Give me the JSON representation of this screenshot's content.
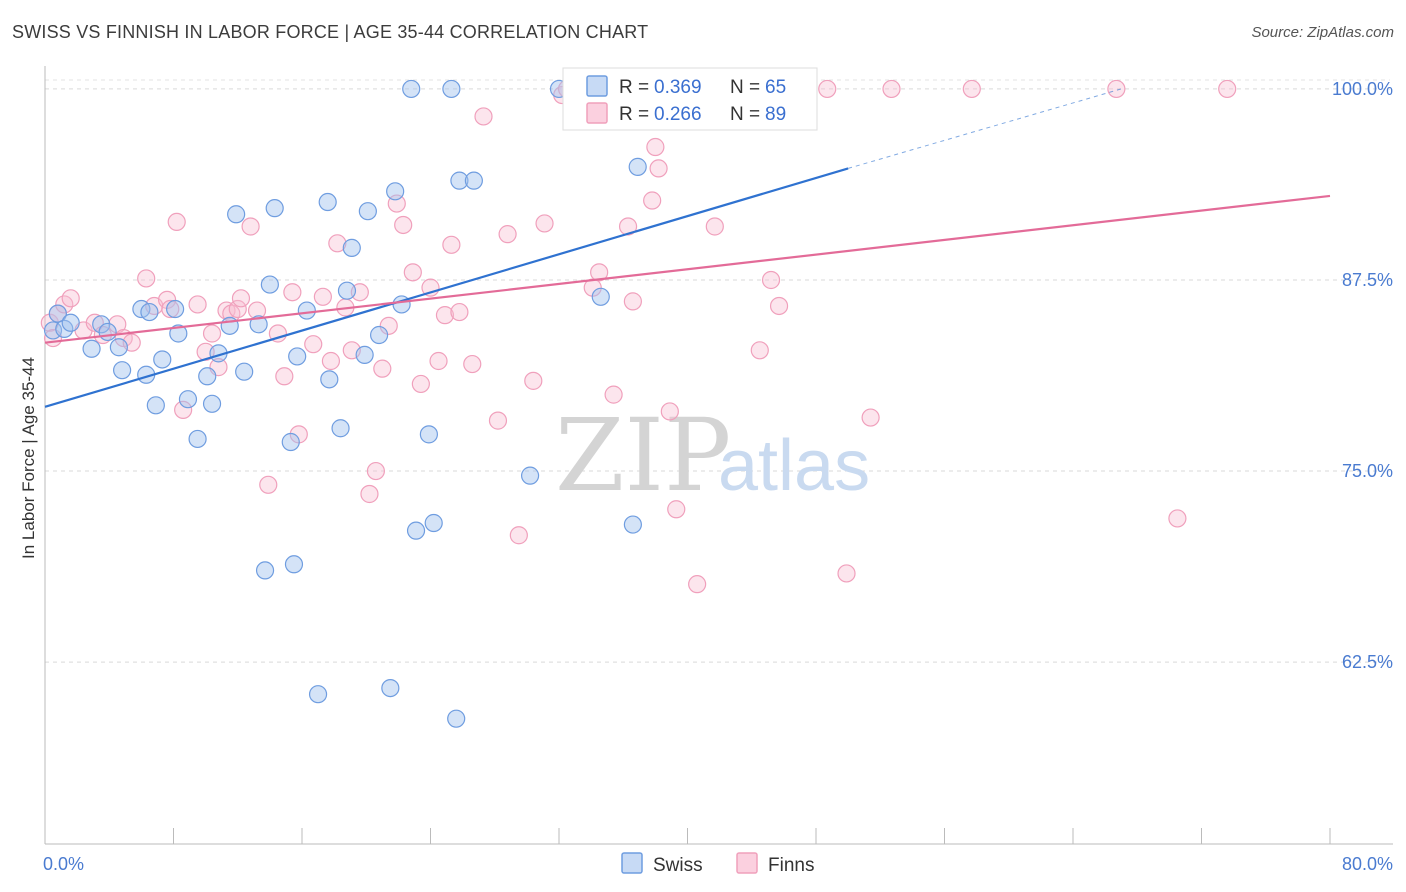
{
  "title": "SWISS VS FINNISH IN LABOR FORCE | AGE 35-44 CORRELATION CHART",
  "source": "Source: ZipAtlas.com",
  "watermark": {
    "zip": "ZIP",
    "atlas": "atlas"
  },
  "legend_top": [
    {
      "r_label": "R = ",
      "r_value": "0.369",
      "n_label": "N = ",
      "n_value": "65",
      "color": "#6f9de0"
    },
    {
      "r_label": "R = ",
      "r_value": "0.266",
      "n_label": "N = ",
      "n_value": "89",
      "color": "#f0a0bc"
    }
  ],
  "legend_bottom": [
    {
      "name": "Swiss",
      "color": "#6f9de0"
    },
    {
      "name": "Finns",
      "color": "#f0a0bc"
    }
  ],
  "chart_data": {
    "type": "scatter",
    "title": "SWISS VS FINNISH IN LABOR FORCE | AGE 35-44 CORRELATION CHART",
    "xlabel": "",
    "ylabel": "In Labor Force | Age 35-44",
    "xlim": [
      0,
      80
    ],
    "ylim": [
      50.6,
      101.5
    ],
    "x_tick_labels": [
      {
        "value": 0,
        "label": "0.0%"
      },
      {
        "value": 80,
        "label": "80.0%"
      }
    ],
    "y_tick_labels": [
      {
        "value": 100,
        "label": "100.0%"
      },
      {
        "value": 87.5,
        "label": "87.5%"
      },
      {
        "value": 75,
        "label": "75.0%"
      },
      {
        "value": 62.5,
        "label": "62.5%"
      }
    ],
    "grid": true,
    "series": [
      {
        "name": "Swiss",
        "color": "#6f9de0",
        "line_color": "#2f72d0",
        "trend": {
          "x": [
            0,
            50
          ],
          "y": [
            79.2,
            94.8
          ],
          "dashed_to": [
            67,
            100
          ]
        },
        "points": [
          [
            0.5,
            84.2
          ],
          [
            0.8,
            85.3
          ],
          [
            1.2,
            84.3
          ],
          [
            1.6,
            84.7
          ],
          [
            2.9,
            83
          ],
          [
            3.5,
            84.6
          ],
          [
            3.9,
            84.1
          ],
          [
            4.6,
            83.1
          ],
          [
            6,
            85.6
          ],
          [
            6.5,
            85.4
          ],
          [
            4.8,
            81.6
          ],
          [
            6.3,
            81.3
          ],
          [
            6.9,
            79.3
          ],
          [
            7.3,
            82.3
          ],
          [
            8.1,
            85.6
          ],
          [
            8.3,
            84
          ],
          [
            8.9,
            79.7
          ],
          [
            9.5,
            77.1
          ],
          [
            10.1,
            81.2
          ],
          [
            10.4,
            79.4
          ],
          [
            10.8,
            82.7
          ],
          [
            11.5,
            84.5
          ],
          [
            11.9,
            91.8
          ],
          [
            12.4,
            81.5
          ],
          [
            13.3,
            84.6
          ],
          [
            13.7,
            68.5
          ],
          [
            14,
            87.2
          ],
          [
            14.3,
            92.2
          ],
          [
            15.3,
            76.9
          ],
          [
            15.5,
            68.9
          ],
          [
            15.7,
            82.5
          ],
          [
            16.3,
            85.5
          ],
          [
            17,
            60.4
          ],
          [
            17.6,
            92.6
          ],
          [
            17.7,
            81
          ],
          [
            18.4,
            77.8
          ],
          [
            18.8,
            86.8
          ],
          [
            19.1,
            89.6
          ],
          [
            19.9,
            82.6
          ],
          [
            20.1,
            92
          ],
          [
            20.8,
            83.9
          ],
          [
            21.5,
            60.8
          ],
          [
            21.8,
            93.3
          ],
          [
            22.2,
            85.9
          ],
          [
            22.8,
            100
          ],
          [
            23.1,
            71.1
          ],
          [
            23.9,
            77.4
          ],
          [
            24.2,
            71.6
          ],
          [
            25.3,
            100
          ],
          [
            25.6,
            58.8
          ],
          [
            25.8,
            94
          ],
          [
            26.7,
            94
          ],
          [
            30.2,
            74.7
          ],
          [
            32,
            100
          ],
          [
            33.5,
            100
          ],
          [
            34.2,
            100
          ],
          [
            34.6,
            86.4
          ],
          [
            36.6,
            71.5
          ],
          [
            36.9,
            94.9
          ],
          [
            39,
            100
          ],
          [
            40.5,
            100
          ],
          [
            42.9,
            100
          ],
          [
            44.7,
            100
          ],
          [
            46.3,
            100
          ],
          [
            47.2,
            100
          ]
        ]
      },
      {
        "name": "Finns",
        "color": "#f0a0bc",
        "line_color": "#e36b98",
        "trend": {
          "x": [
            0,
            80
          ],
          "y": [
            83.4,
            93
          ]
        },
        "points": [
          [
            0.3,
            84.7
          ],
          [
            0.5,
            83.7
          ],
          [
            0.8,
            85.3
          ],
          [
            1.2,
            85.9
          ],
          [
            1.6,
            86.3
          ],
          [
            2.4,
            84.2
          ],
          [
            3.1,
            84.7
          ],
          [
            3.6,
            83.9
          ],
          [
            4.5,
            84.6
          ],
          [
            4.9,
            83.7
          ],
          [
            5.4,
            83.4
          ],
          [
            6.3,
            87.6
          ],
          [
            6.8,
            85.8
          ],
          [
            7.6,
            86.2
          ],
          [
            7.8,
            85.6
          ],
          [
            8.2,
            91.3
          ],
          [
            8.6,
            79
          ],
          [
            9.5,
            85.9
          ],
          [
            10,
            82.8
          ],
          [
            10.4,
            84
          ],
          [
            10.8,
            81.8
          ],
          [
            11.3,
            85.5
          ],
          [
            11.6,
            85.3
          ],
          [
            12,
            85.6
          ],
          [
            12.2,
            86.3
          ],
          [
            12.8,
            91
          ],
          [
            13.2,
            85.5
          ],
          [
            13.9,
            74.1
          ],
          [
            14.5,
            84
          ],
          [
            14.9,
            81.2
          ],
          [
            15.4,
            86.7
          ],
          [
            15.8,
            77.4
          ],
          [
            16.7,
            83.3
          ],
          [
            17.3,
            86.4
          ],
          [
            17.8,
            82.2
          ],
          [
            18.2,
            89.9
          ],
          [
            18.7,
            85.7
          ],
          [
            19.1,
            82.9
          ],
          [
            19.6,
            86.7
          ],
          [
            20.2,
            73.5
          ],
          [
            20.6,
            75
          ],
          [
            21,
            81.7
          ],
          [
            21.4,
            84.5
          ],
          [
            21.9,
            92.5
          ],
          [
            22.3,
            91.1
          ],
          [
            22.9,
            88
          ],
          [
            23.4,
            80.7
          ],
          [
            24,
            87
          ],
          [
            24.5,
            82.2
          ],
          [
            24.9,
            85.2
          ],
          [
            25.3,
            89.8
          ],
          [
            25.8,
            85.4
          ],
          [
            26.6,
            82
          ],
          [
            27.3,
            98.2
          ],
          [
            28.2,
            78.3
          ],
          [
            28.8,
            90.5
          ],
          [
            29.5,
            70.8
          ],
          [
            30.4,
            80.9
          ],
          [
            31.1,
            91.2
          ],
          [
            32.2,
            99.6
          ],
          [
            32.5,
            100
          ],
          [
            34.1,
            87
          ],
          [
            34.5,
            88
          ],
          [
            35.4,
            80
          ],
          [
            36.3,
            91
          ],
          [
            36.6,
            86.1
          ],
          [
            37.8,
            92.7
          ],
          [
            38,
            96.2
          ],
          [
            38.2,
            94.8
          ],
          [
            38.9,
            78.9
          ],
          [
            39.3,
            72.5
          ],
          [
            40.6,
            67.6
          ],
          [
            41.7,
            91
          ],
          [
            42.6,
            100
          ],
          [
            44.5,
            82.9
          ],
          [
            45.2,
            87.5
          ],
          [
            45.7,
            85.8
          ],
          [
            47.2,
            100
          ],
          [
            48.7,
            100
          ],
          [
            49.9,
            68.3
          ],
          [
            51.4,
            78.5
          ],
          [
            52.7,
            100
          ],
          [
            57.7,
            100
          ],
          [
            66.7,
            100
          ],
          [
            70.5,
            71.9
          ],
          [
            73.6,
            100
          ],
          [
            40.3,
            100
          ],
          [
            41.8,
            100
          ],
          [
            44.9,
            100
          ]
        ]
      }
    ]
  }
}
